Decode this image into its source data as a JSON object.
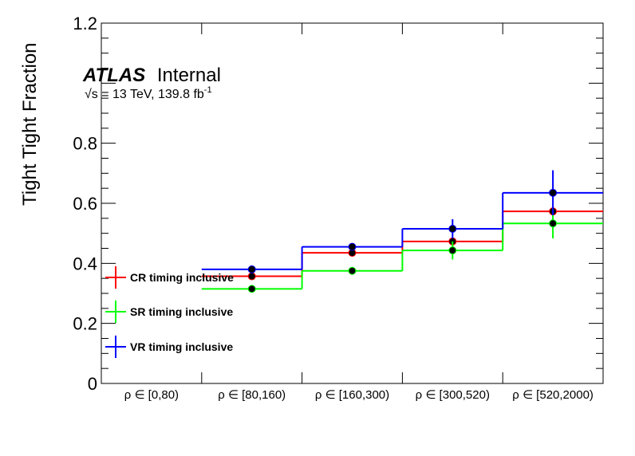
{
  "chart_data": {
    "type": "step",
    "title": "",
    "ylabel": "Tight Tight Fraction",
    "xlabel": "",
    "ylim": [
      0,
      1.2
    ],
    "yticks": [
      "0",
      "0.2",
      "0.4",
      "0.6",
      "0.8",
      "1.2"
    ],
    "ytick_values": [
      0,
      0.2,
      0.4,
      0.6,
      0.8,
      1.2
    ],
    "categories": [
      "ρ ∈ [0,80)",
      "ρ ∈ [80,160)",
      "ρ ∈ [160,300)",
      "ρ ∈ [300,520)",
      "ρ ∈ [520,2000)"
    ],
    "series": [
      {
        "name": "CR timing inclusive",
        "color": "#ff0000",
        "values": [
          null,
          0.357,
          0.435,
          0.473,
          0.573
        ],
        "errors": [
          null,
          0.006,
          0.005,
          0.008,
          0.012
        ]
      },
      {
        "name": "SR timing inclusive",
        "color": "#00ff00",
        "values": [
          null,
          0.315,
          0.375,
          0.443,
          0.533
        ],
        "errors": [
          null,
          0.005,
          0.005,
          0.03,
          0.05
        ]
      },
      {
        "name": "VR timing inclusive",
        "color": "#0000ff",
        "values": [
          null,
          0.38,
          0.455,
          0.515,
          0.635
        ],
        "errors": [
          null,
          0.006,
          0.006,
          0.032,
          0.075
        ]
      }
    ],
    "annotations": {
      "experiment": "ATLAS",
      "status": "Internal",
      "lumi_prefix": "√s = 13 TeV, 139.8 fb",
      "lumi_sup": "-1"
    },
    "legend_position": "bottom-left"
  }
}
